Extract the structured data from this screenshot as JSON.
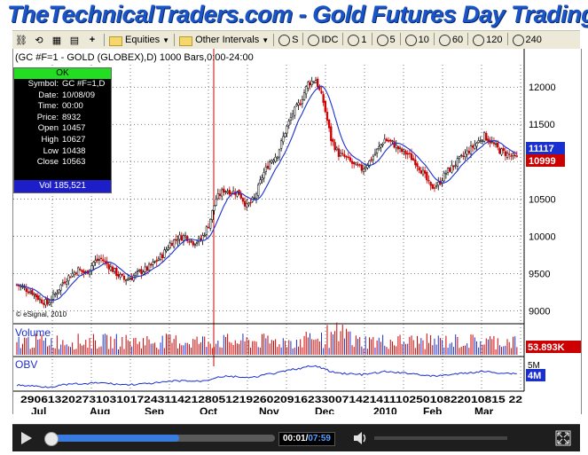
{
  "banner": {
    "title": "TheTechnicalTraders.com - Gold Futures Day Trading"
  },
  "toolbar": {
    "equities_label": "Equities",
    "intervals_label": "Other Intervals",
    "intervals": [
      "S",
      "IDC",
      "1",
      "5",
      "10",
      "60",
      "120",
      "240"
    ]
  },
  "chart": {
    "header": "(GC #F=1 - GOLD (GLOBEX),D) 1000 Bars,0:00-24:00",
    "price_axis": [
      "12000",
      "11500",
      "11000",
      "10500",
      "10000",
      "9500",
      "9000"
    ],
    "last_price_label": "11117",
    "close_label": "10999",
    "copyright": "© eSignal, 2010",
    "volume_label": "Volume",
    "volume_value": "53.893K",
    "obv_label": "OBV",
    "obv_top_label": "5M",
    "obv_value": "4M",
    "date_ticks": "29061320273103101724311421280512192602091623300714214111025010822010815 22",
    "month_labels": [
      "Jul",
      "Aug",
      "Sep",
      "Oct",
      "Nov",
      "Dec",
      "2010",
      "Feb",
      "Mar"
    ],
    "colors": {
      "up": "#000000",
      "down": "#cc0000",
      "ma": "#1a2fd0",
      "volume": "#cc0000",
      "obv": "#1a2fd0",
      "vline": "#cc0000"
    }
  },
  "info_panel": {
    "status": "OK",
    "rows": [
      {
        "k": "Symbol:",
        "v": "GC #F=1,D"
      },
      {
        "k": "Date:",
        "v": "10/08/09"
      },
      {
        "k": "Time:",
        "v": "00:00"
      },
      {
        "k": "Price:",
        "v": "8932"
      },
      {
        "k": "Open",
        "v": "10457"
      },
      {
        "k": "High",
        "v": "10627"
      },
      {
        "k": "Low",
        "v": "10438"
      },
      {
        "k": "Close",
        "v": "10563"
      }
    ],
    "vol_label": "Vol 185,521"
  },
  "chart_data": {
    "type": "candlestick",
    "symbol": "GC #F=1",
    "ylim": [
      8850,
      12300
    ],
    "y_ticks": [
      9000,
      9500,
      10000,
      10500,
      11000,
      11500,
      12000
    ],
    "close_path": [
      [
        0,
        9350
      ],
      [
        4,
        9300
      ],
      [
        8,
        9250
      ],
      [
        12,
        9150
      ],
      [
        16,
        9100
      ],
      [
        20,
        9220
      ],
      [
        24,
        9380
      ],
      [
        28,
        9480
      ],
      [
        32,
        9550
      ],
      [
        36,
        9500
      ],
      [
        40,
        9650
      ],
      [
        44,
        9700
      ],
      [
        48,
        9600
      ],
      [
        52,
        9500
      ],
      [
        56,
        9420
      ],
      [
        60,
        9450
      ],
      [
        64,
        9520
      ],
      [
        68,
        9560
      ],
      [
        72,
        9650
      ],
      [
        76,
        9750
      ],
      [
        80,
        9900
      ],
      [
        84,
        9980
      ],
      [
        88,
        10000
      ],
      [
        92,
        9920
      ],
      [
        96,
        9950
      ],
      [
        100,
        10150
      ],
      [
        104,
        10500
      ],
      [
        108,
        10620
      ],
      [
        112,
        10600
      ],
      [
        116,
        10580
      ],
      [
        120,
        10400
      ],
      [
        124,
        10500
      ],
      [
        128,
        10800
      ],
      [
        132,
        11000
      ],
      [
        136,
        11100
      ],
      [
        140,
        11400
      ],
      [
        144,
        11650
      ],
      [
        148,
        11800
      ],
      [
        152,
        12050
      ],
      [
        156,
        12100
      ],
      [
        160,
        11800
      ],
      [
        164,
        11300
      ],
      [
        168,
        11100
      ],
      [
        172,
        11050
      ],
      [
        176,
        10950
      ],
      [
        180,
        10900
      ],
      [
        184,
        11000
      ],
      [
        188,
        11150
      ],
      [
        192,
        11300
      ],
      [
        196,
        11250
      ],
      [
        200,
        11150
      ],
      [
        204,
        11100
      ],
      [
        208,
        11000
      ],
      [
        212,
        10850
      ],
      [
        216,
        10650
      ],
      [
        220,
        10700
      ],
      [
        224,
        10850
      ],
      [
        228,
        10950
      ],
      [
        232,
        11050
      ],
      [
        236,
        11150
      ],
      [
        240,
        11250
      ],
      [
        244,
        11350
      ],
      [
        248,
        11250
      ],
      [
        252,
        11150
      ],
      [
        256,
        11100
      ],
      [
        260,
        11050
      ]
    ]
  }
}
